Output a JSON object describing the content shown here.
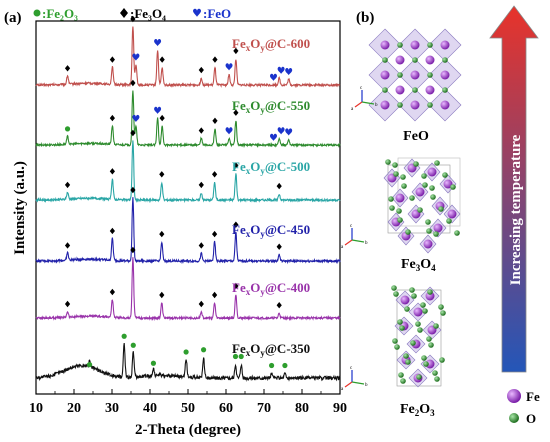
{
  "panel_labels": {
    "a": "(a)",
    "b": "(b)"
  },
  "legend": [
    {
      "symbol": "circle",
      "text": ":Fe₂O₃",
      "color": "#2e9e2e"
    },
    {
      "symbol": "diamond",
      "text": ":Fe₃O₄",
      "color": "#000000"
    },
    {
      "symbol": "heart",
      "text": ":FeO",
      "color": "#1a33cc"
    }
  ],
  "chart_data": {
    "type": "line",
    "xlabel": "2-Theta (degree)",
    "ylabel": "Intensity (a.u.)",
    "xlim": [
      10,
      90
    ],
    "xticks": [
      10,
      20,
      30,
      40,
      50,
      60,
      70,
      80,
      90
    ],
    "series": [
      {
        "name": "FexOy@C-600",
        "label_main": "Fe",
        "label_sub1": "x",
        "label_mid": "O",
        "label_sub2": "y",
        "label_tail": "@C-600",
        "color": "#c0504d",
        "peaks": [
          [
            18.3,
            0.15
          ],
          [
            30.1,
            0.3
          ],
          [
            35.5,
            1.0
          ],
          [
            36.3,
            0.35
          ],
          [
            42.0,
            0.6
          ],
          [
            43.2,
            0.3
          ],
          [
            53.5,
            0.12
          ],
          [
            57.1,
            0.3
          ],
          [
            60.8,
            0.18
          ],
          [
            62.6,
            0.45
          ],
          [
            74.0,
            0.12
          ],
          [
            76.5,
            0.1
          ]
        ],
        "markers": [
          [
            "diamond",
            18.3
          ],
          [
            "diamond",
            30.1
          ],
          [
            "diamond",
            35.5
          ],
          [
            "heart",
            36.3
          ],
          [
            "heart",
            42.0
          ],
          [
            "diamond",
            43.2
          ],
          [
            "diamond",
            53.5
          ],
          [
            "diamond",
            57.1
          ],
          [
            "heart",
            60.8
          ],
          [
            "diamond",
            62.6
          ],
          [
            "heart",
            72.5
          ],
          [
            "heart",
            74.5
          ],
          [
            "heart",
            76.5
          ]
        ]
      },
      {
        "name": "FexOy@C-550",
        "label_main": "Fe",
        "label_sub1": "x",
        "label_mid": "O",
        "label_sub2": "y",
        "label_tail": "@C-550",
        "color": "#2e8b2e",
        "peaks": [
          [
            18.3,
            0.15
          ],
          [
            30.1,
            0.35
          ],
          [
            35.5,
            1.0
          ],
          [
            36.3,
            0.35
          ],
          [
            42.0,
            0.5
          ],
          [
            43.2,
            0.35
          ],
          [
            53.5,
            0.12
          ],
          [
            57.1,
            0.3
          ],
          [
            60.8,
            0.12
          ],
          [
            62.6,
            0.45
          ],
          [
            74.0,
            0.12
          ],
          [
            76.5,
            0.1
          ]
        ],
        "markers": [
          [
            "circle",
            18.3
          ],
          [
            "diamond",
            30.1
          ],
          [
            "diamond",
            35.5
          ],
          [
            "heart",
            36.3
          ],
          [
            "heart",
            42.0
          ],
          [
            "diamond",
            43.2
          ],
          [
            "diamond",
            53.5
          ],
          [
            "diamond",
            57.1
          ],
          [
            "heart",
            60.8
          ],
          [
            "diamond",
            62.6
          ],
          [
            "heart",
            72.5
          ],
          [
            "heart",
            74.5
          ],
          [
            "heart",
            76.5
          ]
        ]
      },
      {
        "name": "FexOy@C-500",
        "label_main": "Fe",
        "label_sub1": "x",
        "label_mid": "O",
        "label_sub2": "y",
        "label_tail": "@C-500",
        "color": "#2aa6a6",
        "peaks": [
          [
            18.3,
            0.12
          ],
          [
            30.1,
            0.35
          ],
          [
            35.5,
            1.0
          ],
          [
            43.1,
            0.3
          ],
          [
            53.5,
            0.12
          ],
          [
            57.0,
            0.3
          ],
          [
            62.6,
            0.45
          ],
          [
            74.0,
            0.1
          ]
        ],
        "markers": [
          [
            "diamond",
            18.3
          ],
          [
            "diamond",
            30.1
          ],
          [
            "diamond",
            35.5
          ],
          [
            "diamond",
            43.1
          ],
          [
            "diamond",
            53.5
          ],
          [
            "diamond",
            57.0
          ],
          [
            "diamond",
            62.6
          ],
          [
            "diamond",
            74.0
          ]
        ]
      },
      {
        "name": "FexOy@C-450",
        "label_main": "Fe",
        "label_sub1": "x",
        "label_mid": "O",
        "label_sub2": "y",
        "label_tail": "@C-450",
        "color": "#2222aa",
        "peaks": [
          [
            18.3,
            0.12
          ],
          [
            30.1,
            0.35
          ],
          [
            35.5,
            1.0
          ],
          [
            43.1,
            0.3
          ],
          [
            53.5,
            0.12
          ],
          [
            57.0,
            0.3
          ],
          [
            62.6,
            0.45
          ],
          [
            74.0,
            0.1
          ]
        ],
        "markers": [
          [
            "diamond",
            18.3
          ],
          [
            "diamond",
            30.1
          ],
          [
            "diamond",
            35.5
          ],
          [
            "diamond",
            43.1
          ],
          [
            "diamond",
            53.5
          ],
          [
            "diamond",
            57.0
          ],
          [
            "diamond",
            62.6
          ],
          [
            "diamond",
            74.0
          ]
        ]
      },
      {
        "name": "FexOy@C-400",
        "label_main": "Fe",
        "label_sub1": "x",
        "label_mid": "O",
        "label_sub2": "y",
        "label_tail": "@C-400",
        "color": "#9933aa",
        "peaks": [
          [
            18.3,
            0.1
          ],
          [
            30.1,
            0.3
          ],
          [
            35.5,
            1.0
          ],
          [
            43.1,
            0.25
          ],
          [
            53.5,
            0.1
          ],
          [
            57.0,
            0.25
          ],
          [
            62.6,
            0.4
          ],
          [
            74.0,
            0.08
          ]
        ],
        "markers": [
          [
            "diamond",
            18.3
          ],
          [
            "diamond",
            30.1
          ],
          [
            "diamond",
            35.5
          ],
          [
            "diamond",
            43.1
          ],
          [
            "diamond",
            53.5
          ],
          [
            "diamond",
            57.0
          ],
          [
            "diamond",
            62.6
          ],
          [
            "diamond",
            74.0
          ]
        ]
      },
      {
        "name": "FexOy@C-350",
        "label_main": "Fe",
        "label_sub1": "x",
        "label_mid": "O",
        "label_sub2": "y",
        "label_tail": "@C-350",
        "color": "#111111",
        "peaks": [
          [
            24.1,
            0.12
          ],
          [
            33.2,
            0.75
          ],
          [
            35.6,
            0.55
          ],
          [
            40.9,
            0.15
          ],
          [
            49.5,
            0.4
          ],
          [
            54.1,
            0.45
          ],
          [
            62.5,
            0.3
          ],
          [
            64.0,
            0.3
          ],
          [
            72.0,
            0.1
          ],
          [
            75.5,
            0.1
          ]
        ],
        "markers": [
          [
            "circle",
            24.1
          ],
          [
            "circle",
            33.2
          ],
          [
            "circle",
            35.6
          ],
          [
            "circle",
            40.9
          ],
          [
            "circle",
            49.5
          ],
          [
            "circle",
            54.1
          ],
          [
            "circle",
            62.5
          ],
          [
            "circle",
            64.0
          ],
          [
            "circle",
            72.0
          ],
          [
            "circle",
            75.5
          ]
        ]
      }
    ]
  },
  "structures": [
    {
      "name": "FeO",
      "main": "FeO",
      "sub": "",
      "tail": ""
    },
    {
      "name": "Fe3O4",
      "main": "Fe",
      "sub": "3",
      "mid": "O",
      "sub2": "4"
    },
    {
      "name": "Fe2O3",
      "main": "Fe",
      "sub": "2",
      "mid": "O",
      "sub2": "3"
    }
  ],
  "temperature_arrow": {
    "text": "Increasing temperature",
    "top_color": "#e8332a",
    "bottom_color": "#2456b8"
  },
  "atom_legend": [
    {
      "name": "Fe",
      "color": "#a02cc8"
    },
    {
      "name": "O",
      "color": "#2e8b2e"
    }
  ],
  "axis_letters": {
    "a": "a",
    "b": "b",
    "c": "c"
  }
}
